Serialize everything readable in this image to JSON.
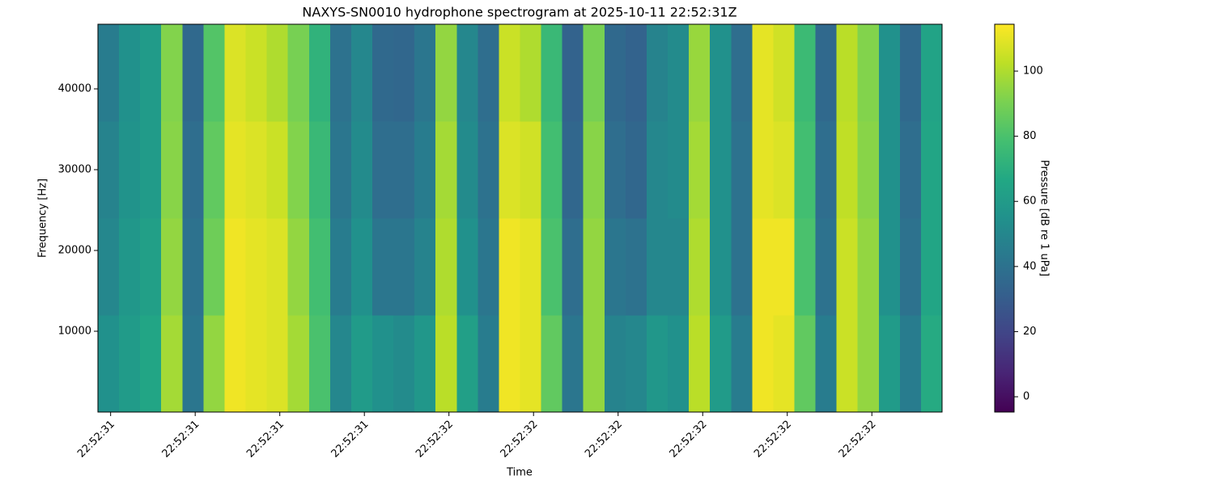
{
  "chart_data": {
    "type": "heatmap",
    "title": "NAXYS-SN0010 hydrophone spectrogram at 2025-10-11 22:52:31Z",
    "x_label": "Time",
    "y_label": "Frequency [Hz]",
    "colorbar_label": "Pressure [dB re 1 uPa]",
    "colormap": "viridis",
    "xlim": [
      31.585,
      32.583
    ],
    "xticks": [
      {
        "value": 31.6,
        "label": "22:52:31"
      },
      {
        "value": 31.7,
        "label": "22:52:31"
      },
      {
        "value": 31.8,
        "label": "22:52:31"
      },
      {
        "value": 31.9,
        "label": "22:52:31"
      },
      {
        "value": 32.0,
        "label": "22:52:32"
      },
      {
        "value": 32.1,
        "label": "22:52:32"
      },
      {
        "value": 32.2,
        "label": "22:52:32"
      },
      {
        "value": 32.3,
        "label": "22:52:32"
      },
      {
        "value": 32.4,
        "label": "22:52:32"
      },
      {
        "value": 32.5,
        "label": "22:52:32"
      }
    ],
    "ylim": [
      0,
      48000
    ],
    "yticks": [
      10000,
      20000,
      30000,
      40000
    ],
    "clim": [
      -4.7,
      114.4
    ],
    "cticks": [
      0,
      20,
      40,
      60,
      80,
      100
    ],
    "z": [
      [
        55,
        60,
        65,
        98,
        42,
        95,
        112,
        110,
        108,
        98,
        80,
        50,
        60,
        55,
        52,
        58,
        102,
        62,
        45,
        112,
        110,
        85,
        42,
        95,
        48,
        50,
        58,
        55,
        102,
        60,
        45,
        112,
        110,
        85,
        45,
        105,
        95,
        60,
        45,
        68
      ],
      [
        50,
        58,
        62,
        95,
        40,
        88,
        112,
        110,
        108,
        95,
        78,
        45,
        55,
        42,
        42,
        48,
        100,
        55,
        42,
        112,
        110,
        80,
        38,
        95,
        42,
        40,
        50,
        50,
        100,
        55,
        40,
        112,
        112,
        80,
        40,
        105,
        95,
        55,
        40,
        65
      ],
      [
        48,
        56,
        60,
        93,
        38,
        85,
        110,
        108,
        105,
        92,
        75,
        42,
        52,
        38,
        38,
        45,
        98,
        52,
        40,
        108,
        106,
        78,
        35,
        93,
        38,
        35,
        50,
        52,
        98,
        55,
        40,
        110,
        108,
        78,
        38,
        103,
        93,
        55,
        38,
        65
      ],
      [
        45,
        55,
        60,
        92,
        36,
        82,
        108,
        105,
        100,
        90,
        72,
        40,
        50,
        36,
        35,
        42,
        95,
        50,
        38,
        105,
        100,
        75,
        33,
        90,
        36,
        33,
        48,
        52,
        96,
        55,
        38,
        110,
        106,
        76,
        36,
        102,
        92,
        55,
        36,
        64
      ]
    ]
  }
}
